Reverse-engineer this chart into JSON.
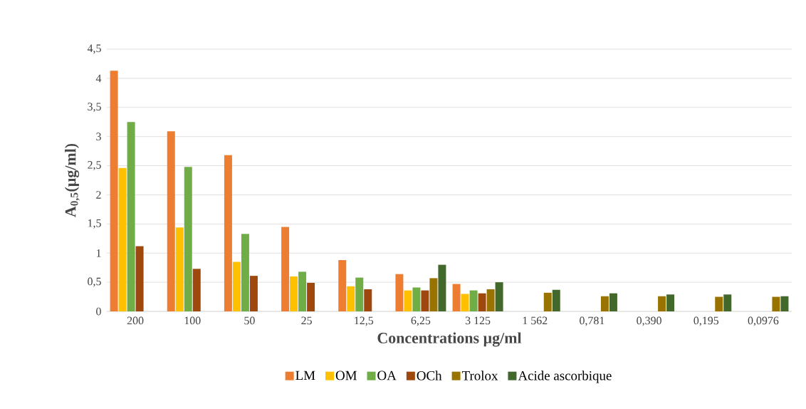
{
  "chart_data": {
    "type": "bar",
    "xlabel": "Concentrations µg/ml",
    "ylabel": "A$_{0,5}$(µg/ml)",
    "categories": [
      "200",
      "100",
      "50",
      "25",
      "12,5",
      "6,25",
      "3 125",
      "1 562",
      "0,781",
      "0,390",
      "0,195",
      "0,0976"
    ],
    "series": [
      {
        "name": "LM",
        "color": "#ed7d31",
        "values": [
          4.13,
          3.09,
          2.68,
          1.45,
          0.88,
          0.64,
          0.47,
          null,
          null,
          null,
          null,
          null
        ]
      },
      {
        "name": "OM",
        "color": "#ffc000",
        "values": [
          2.46,
          1.44,
          0.85,
          0.6,
          0.43,
          0.36,
          0.3,
          null,
          null,
          null,
          null,
          null
        ]
      },
      {
        "name": "OA",
        "color": "#70ad47",
        "values": [
          3.25,
          2.48,
          1.33,
          0.68,
          0.58,
          0.41,
          0.36,
          null,
          null,
          null,
          null,
          null
        ]
      },
      {
        "name": "OCh",
        "color": "#9e480e",
        "values": [
          1.12,
          0.73,
          0.61,
          0.49,
          0.38,
          0.36,
          0.31,
          null,
          null,
          null,
          null,
          null
        ]
      },
      {
        "name": "Trolox",
        "color": "#997300",
        "values": [
          null,
          null,
          null,
          null,
          null,
          0.57,
          0.38,
          0.32,
          0.26,
          0.26,
          0.25,
          0.25
        ]
      },
      {
        "name": "Acide ascorbique",
        "color": "#43682b",
        "values": [
          null,
          null,
          null,
          null,
          null,
          0.8,
          0.5,
          0.37,
          0.31,
          0.29,
          0.29,
          0.26
        ]
      }
    ],
    "ylim": [
      0,
      4.5
    ],
    "yticks": [
      0,
      {
        "value": 0.5,
        "label": "0,5"
      },
      1,
      {
        "value": 1.5,
        "label": "1,5"
      },
      2,
      {
        "value": 2.5,
        "label": "2,5"
      },
      3,
      {
        "value": 3.5,
        "label": "3,5"
      },
      4,
      {
        "value": 4.5,
        "label": "4,5"
      }
    ],
    "grid": "y",
    "legend": "bottom"
  }
}
